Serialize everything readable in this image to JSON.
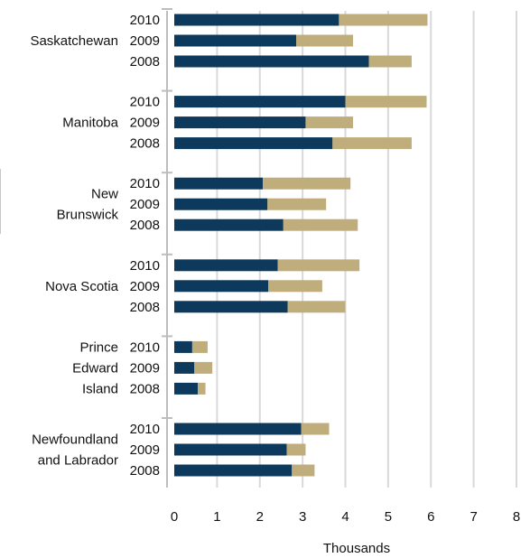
{
  "chart_data": {
    "type": "bar",
    "stacked": true,
    "orientation": "horizontal",
    "xlabel": "Thousands",
    "xlim": [
      0,
      8
    ],
    "x_ticks": [
      "0",
      "1",
      "2",
      "3",
      "4",
      "5",
      "6",
      "7",
      "8"
    ],
    "grid": true,
    "colors": {
      "segment_1": "#0d3a5c",
      "segment_2": "#bfae7c",
      "grid": "#d9d9d9",
      "axis": "#bdbdbd"
    },
    "groups": [
      {
        "label_lines": [
          "Saskatchewan"
        ],
        "bars": [
          {
            "year": "2010",
            "values": [
              3.85,
              2.07
            ]
          },
          {
            "year": "2009",
            "values": [
              2.85,
              1.33
            ]
          },
          {
            "year": "2008",
            "values": [
              4.55,
              1.0
            ]
          }
        ]
      },
      {
        "label_lines": [
          "Manitoba"
        ],
        "bars": [
          {
            "year": "2010",
            "values": [
              4.0,
              1.9
            ]
          },
          {
            "year": "2009",
            "values": [
              3.07,
              1.11
            ]
          },
          {
            "year": "2008",
            "values": [
              3.7,
              1.85
            ]
          }
        ]
      },
      {
        "label_lines": [
          "New",
          "Brunswick"
        ],
        "bars": [
          {
            "year": "2010",
            "values": [
              2.07,
              2.05
            ]
          },
          {
            "year": "2009",
            "values": [
              2.18,
              1.37
            ]
          },
          {
            "year": "2008",
            "values": [
              2.55,
              1.74
            ]
          }
        ]
      },
      {
        "label_lines": [
          "Nova Scotia"
        ],
        "bars": [
          {
            "year": "2010",
            "values": [
              2.42,
              1.91
            ]
          },
          {
            "year": "2009",
            "values": [
              2.2,
              1.26
            ]
          },
          {
            "year": "2008",
            "values": [
              2.65,
              1.35
            ]
          }
        ]
      },
      {
        "label_lines": [
          "Prince",
          "Edward",
          "Island"
        ],
        "bars": [
          {
            "year": "2010",
            "values": [
              0.42,
              0.36
            ]
          },
          {
            "year": "2009",
            "values": [
              0.47,
              0.42
            ]
          },
          {
            "year": "2008",
            "values": [
              0.55,
              0.18
            ]
          }
        ]
      },
      {
        "label_lines": [
          "Newfoundland",
          "and Labrador"
        ],
        "bars": [
          {
            "year": "2010",
            "values": [
              2.97,
              0.65
            ]
          },
          {
            "year": "2009",
            "values": [
              2.63,
              0.44
            ]
          },
          {
            "year": "2008",
            "values": [
              2.75,
              0.53
            ]
          }
        ]
      }
    ]
  }
}
